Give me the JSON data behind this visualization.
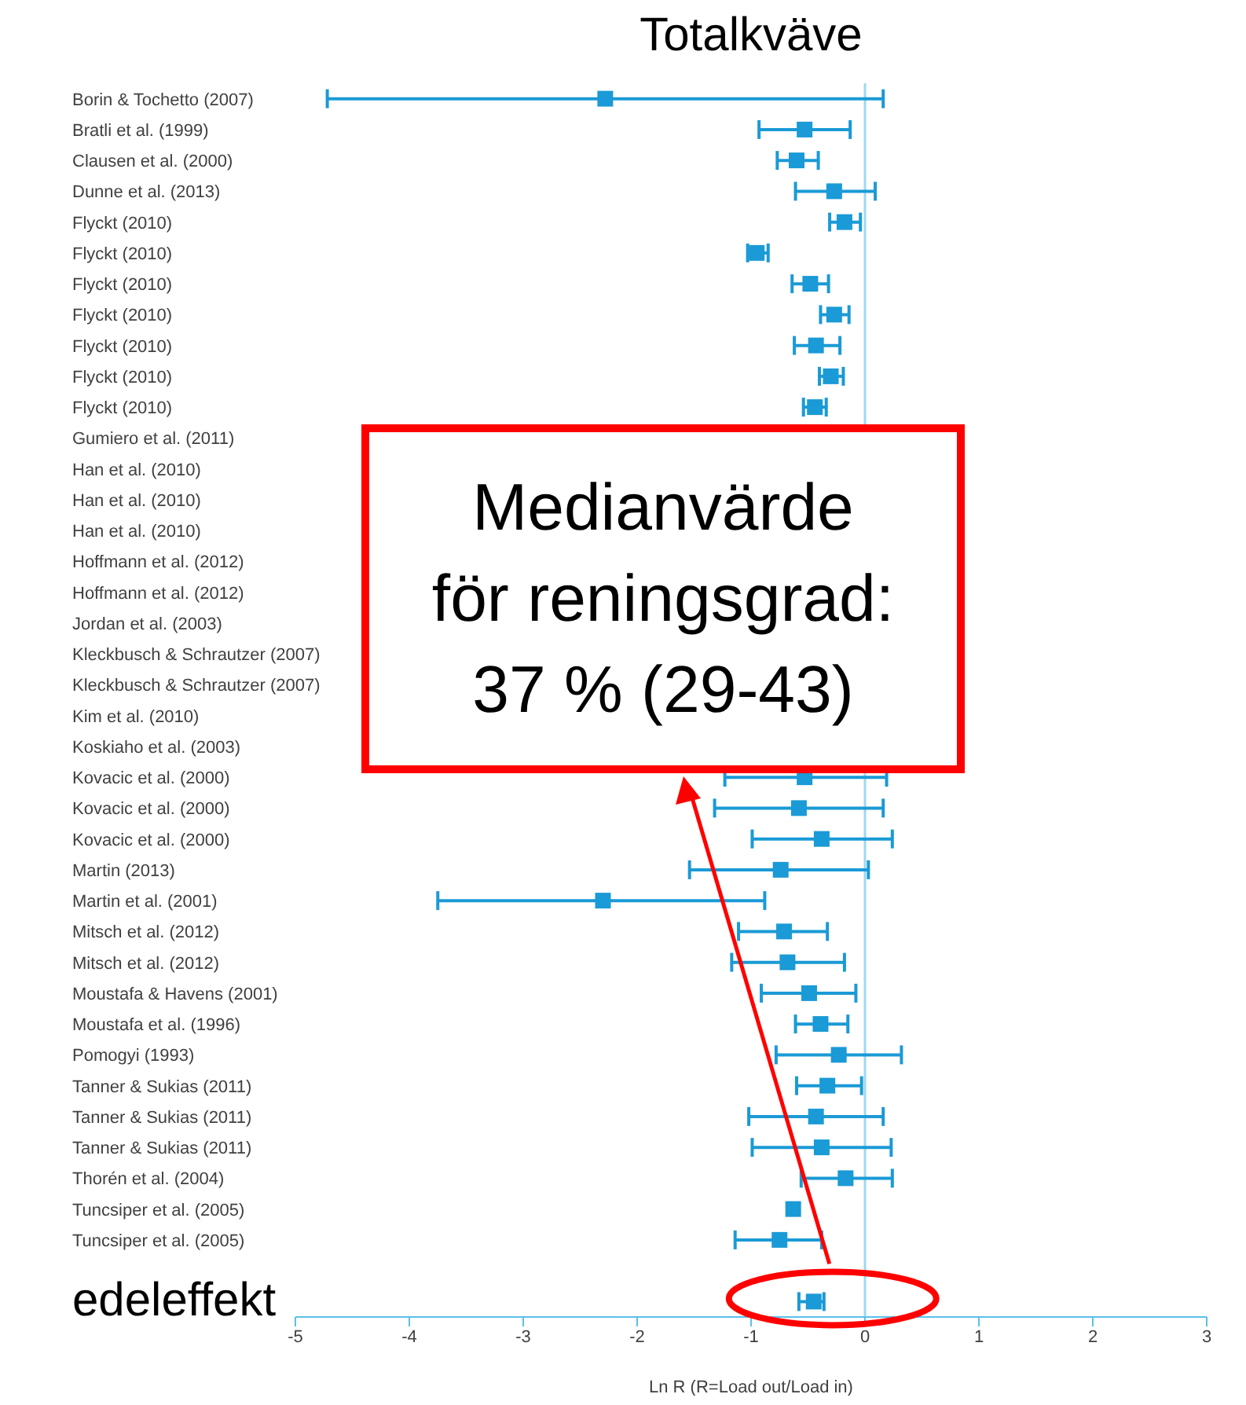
{
  "chart_data": {
    "type": "scatter",
    "orientation": "horizontal",
    "title": "Totalkväve",
    "xlabel": "Ln R (R=Load out/Load in)",
    "categories": [
      "Borin & Tochetto (2007)",
      "Bratli et al. (1999)",
      "Clausen et al. (2000)",
      "Dunne et al. (2013)",
      "Flyckt (2010)",
      "Flyckt (2010)",
      "Flyckt (2010)",
      "Flyckt (2010)",
      "Flyckt (2010)",
      "Flyckt (2010)",
      "Flyckt (2010)",
      "Gumiero et al. (2011)",
      "Han et al. (2010)",
      "Han et al. (2010)",
      "Han et al. (2010)",
      "Hoffmann et al. (2012)",
      "Hoffmann et al. (2012)",
      "Jordan et al. (2003)",
      "Kleckbusch & Schrautzer (2007)",
      "Kleckbusch & Schrautzer (2007)",
      "Kim et al. (2010)",
      "Koskiaho et al. (2003)",
      "Kovacic et al. (2000)",
      "Kovacic et al. (2000)",
      "Kovacic et al. (2000)",
      "Martin (2013)",
      "Martin et al. (2001)",
      "Mitsch et al. (2012)",
      "Mitsch et al. (2012)",
      "Moustafa & Havens (2001)",
      "Moustafa et al. (1996)",
      "Pomogyi (1993)",
      "Tanner & Sukias (2011)",
      "Tanner & Sukias (2011)",
      "Tanner & Sukias (2011)",
      "Thorén et al. (2004)",
      "Tuncsiper et al. (2005)",
      "Tuncsiper et al. (2005)",
      null,
      "edeleffekt"
    ],
    "series": [
      {
        "color": "#1a9ad6",
        "values": [
          -2.28,
          -0.53,
          -0.6,
          -0.27,
          -0.18,
          -0.95,
          -0.48,
          -0.27,
          -0.43,
          -0.3,
          -0.44,
          null,
          null,
          null,
          null,
          null,
          null,
          null,
          null,
          null,
          null,
          null,
          -0.53,
          -0.58,
          -0.38,
          -0.74,
          -2.3,
          -0.71,
          -0.68,
          -0.49,
          -0.39,
          -0.23,
          -0.33,
          -0.43,
          -0.38,
          -0.17,
          -0.63,
          -0.75,
          null,
          -0.45
        ],
        "errors": [
          [
            -4.72,
            0.16
          ],
          [
            -0.93,
            -0.13
          ],
          [
            -0.77,
            -0.41
          ],
          [
            -0.61,
            0.09
          ],
          [
            -0.31,
            -0.04
          ],
          [
            -1.03,
            -0.85
          ],
          [
            -0.64,
            -0.32
          ],
          [
            -0.39,
            -0.14
          ],
          [
            -0.62,
            -0.22
          ],
          [
            -0.4,
            -0.19
          ],
          [
            -0.54,
            -0.34
          ],
          null,
          null,
          null,
          null,
          null,
          null,
          null,
          null,
          null,
          null,
          null,
          [
            -1.23,
            0.19
          ],
          [
            -1.32,
            0.16
          ],
          [
            -0.99,
            0.24
          ],
          [
            -1.54,
            0.03
          ],
          [
            -3.75,
            -0.88
          ],
          [
            -1.11,
            -0.33
          ],
          [
            -1.17,
            -0.18
          ],
          [
            -0.91,
            -0.08
          ],
          [
            -0.61,
            -0.15
          ],
          [
            -0.78,
            0.32
          ],
          [
            -0.6,
            -0.03
          ],
          [
            -1.02,
            0.16
          ],
          [
            -0.99,
            0.23
          ],
          [
            -0.56,
            0.24
          ],
          null,
          [
            -1.14,
            -0.38
          ],
          null,
          [
            -0.58,
            -0.36
          ]
        ]
      }
    ],
    "xlim": [
      -5,
      3
    ],
    "xticks": [
      -5,
      -4,
      -3,
      -2,
      -1,
      0,
      1,
      2,
      3
    ],
    "ref_lines": [
      {
        "axis": "x",
        "value": 0,
        "color": "#9dd8f2"
      }
    ],
    "annotations": [
      "Medianvärde för reningsgrad: 37 % (29-43)"
    ],
    "marker": "square",
    "grid": false,
    "legend": false
  }
}
